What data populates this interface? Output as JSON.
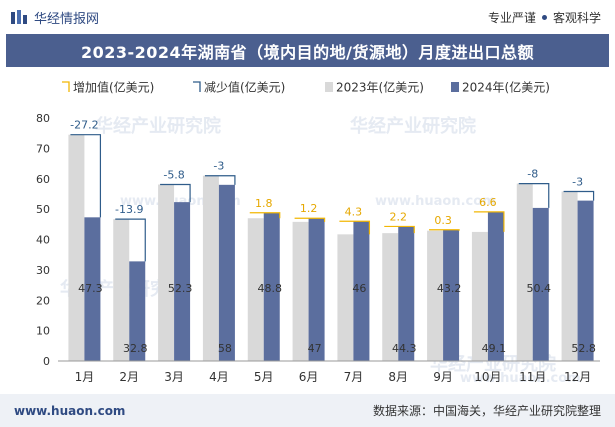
{
  "header": {
    "brand": "华经情报网",
    "tag1": "专业严谨",
    "tag2": "客观科学",
    "title": "2023-2024年湖南省（境内目的地/货源地）月度进出口总额"
  },
  "footer": {
    "site": "www.huaon.com",
    "source": "数据来源：中国海关，华经产业研究院整理"
  },
  "watermarks": [
    "华经产业研究院",
    "www.huaon.com"
  ],
  "chart_data": {
    "type": "bar",
    "categories": [
      "1月",
      "2月",
      "3月",
      "4月",
      "5月",
      "6月",
      "7月",
      "8月",
      "9月",
      "10月",
      "11月",
      "12月"
    ],
    "series": [
      {
        "name": "2023年(亿美元)",
        "values": [
          74.5,
          46.7,
          58.1,
          61.0,
          47.0,
          45.8,
          41.7,
          42.1,
          42.9,
          42.5,
          58.4,
          55.8
        ],
        "color": "#d9d9d9"
      },
      {
        "name": "2024年(亿美元)",
        "values": [
          47.3,
          32.8,
          52.3,
          58,
          48.8,
          47,
          46,
          44.3,
          43.2,
          49.1,
          50.4,
          52.8
        ],
        "color": "#5b6e9e"
      }
    ],
    "change": {
      "labels": [
        "-27.2",
        "-13.9",
        "-5.8",
        "-3",
        "1.8",
        "1.2",
        "4.3",
        "2.2",
        "0.3",
        "6.6",
        "-8",
        "-3"
      ],
      "increase_name": "增加值(亿美元)",
      "decrease_name": "减少值(亿美元)",
      "increase_color": "#f2b705",
      "decrease_color": "#2f5c8a"
    },
    "y_ticks": [
      0,
      10,
      20,
      30,
      40,
      50,
      60,
      70,
      80
    ],
    "ylim": [
      0,
      80
    ],
    "legend_position": "top-left",
    "grid": false
  }
}
